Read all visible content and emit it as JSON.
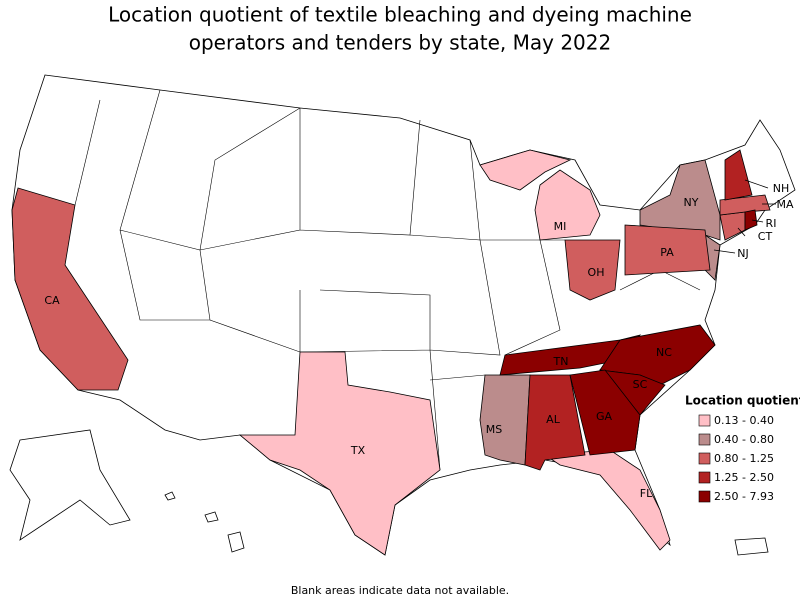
{
  "title": [
    "Location quotient of textile bleaching and dyeing machine",
    "operators and tenders by state, May 2022"
  ],
  "states": [
    {
      "label": "CA",
      "color": "#d05e5e"
    },
    {
      "label": "TX",
      "color": "#ffbfc6"
    },
    {
      "label": "MI",
      "color": "#ffbfc6"
    },
    {
      "label": "FL",
      "color": "#ffbfc6"
    },
    {
      "label": "NY",
      "color": "#bb8c8c"
    },
    {
      "label": "MS",
      "color": "#bb8c8c"
    },
    {
      "label": "NJ",
      "color": "#bb8c8c"
    },
    {
      "label": "OH",
      "color": "#d05e5e"
    },
    {
      "label": "PA",
      "color": "#d05e5e"
    },
    {
      "label": "CT",
      "color": "#d05e5e"
    },
    {
      "label": "MA",
      "color": "#d05e5e"
    },
    {
      "label": "NH",
      "color": "#b22222"
    },
    {
      "label": "AL",
      "color": "#b22222"
    },
    {
      "label": "RI",
      "color": "#8b0000"
    },
    {
      "label": "TN",
      "color": "#8b0000"
    },
    {
      "label": "NC",
      "color": "#8b0000"
    },
    {
      "label": "SC",
      "color": "#8b0000"
    },
    {
      "label": "GA",
      "color": "#8b0000"
    }
  ],
  "legend": {
    "title": "Location quotient",
    "items": [
      {
        "label": "0.13 - 0.40",
        "color": "#ffbfc6"
      },
      {
        "label": "0.40 - 0.80",
        "color": "#bb8c8c"
      },
      {
        "label": "0.80 - 1.25",
        "color": "#d05e5e"
      },
      {
        "label": "1.25 - 2.50",
        "color": "#b22222"
      },
      {
        "label": "2.50 - 7.93",
        "color": "#8b0000"
      }
    ]
  },
  "note": "Blank areas indicate data not available."
}
